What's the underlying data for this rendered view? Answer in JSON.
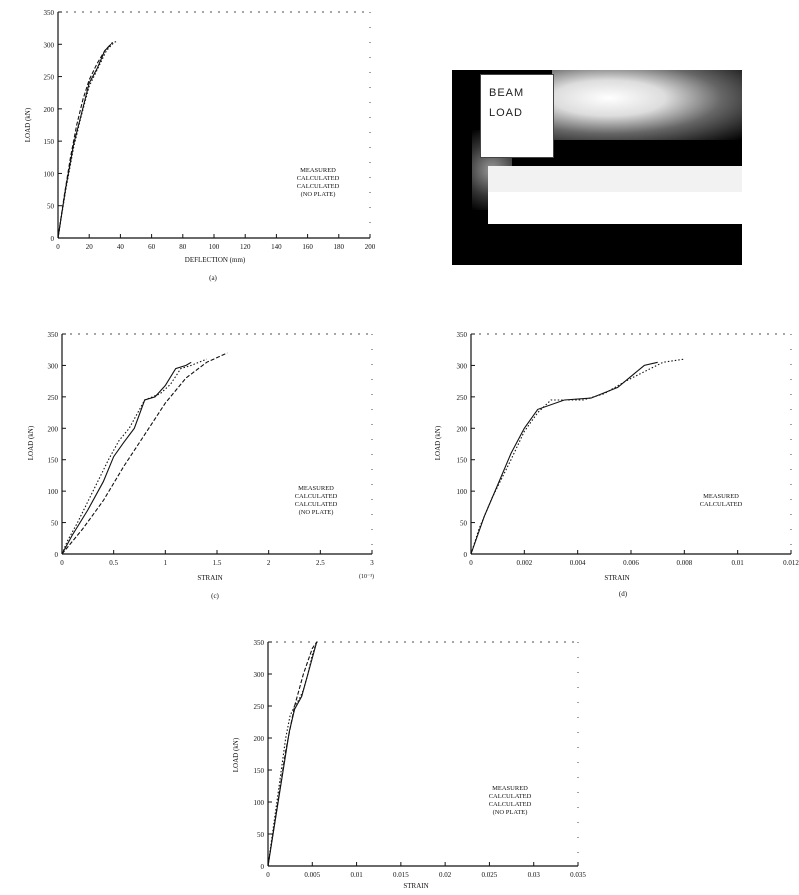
{
  "chart_data": [
    {
      "type": "line",
      "xlabel": "DEFLECTION (mm)",
      "ylabel": "LOAD (kN)",
      "sublabel": "(a)",
      "xticks": [
        "0",
        "20",
        "40",
        "60",
        "80",
        "100",
        "120",
        "140",
        "160",
        "180",
        "200"
      ],
      "yticks": [
        "0",
        "50",
        "100",
        "150",
        "200",
        "250",
        "300",
        "350"
      ],
      "xlim": [
        0,
        200
      ],
      "ylim": [
        0,
        350
      ],
      "legend": [
        "MEASURED",
        "CALCULATED",
        "CALCULATED",
        "(NO PLATE)"
      ],
      "legend_position": "right",
      "series": [
        {
          "style": "dotted",
          "x": [
            0,
            2,
            5,
            10,
            15,
            20,
            25,
            28,
            31,
            34,
            36,
            38
          ],
          "y": [
            0,
            30,
            75,
            140,
            190,
            235,
            260,
            275,
            290,
            298,
            303,
            305
          ]
        },
        {
          "style": "solid",
          "x": [
            0,
            5,
            10,
            15,
            20,
            25,
            30,
            34
          ],
          "y": [
            0,
            78,
            145,
            192,
            240,
            262,
            290,
            300
          ]
        },
        {
          "style": "dashed",
          "x": [
            0,
            4,
            8,
            12,
            16,
            20,
            25,
            30,
            35
          ],
          "y": [
            0,
            65,
            125,
            175,
            215,
            245,
            270,
            290,
            303
          ]
        }
      ]
    },
    {
      "type": "line",
      "xlabel": "STRAIN",
      "ylabel": "LOAD (kN)",
      "sublabel": "(c)",
      "xticks": [
        "0",
        "0.5",
        "1",
        "1.5",
        "2",
        "2.5",
        "3"
      ],
      "xmultiplier": "(10⁻³)",
      "yticks": [
        "0",
        "50",
        "100",
        "150",
        "200",
        "250",
        "300",
        "350"
      ],
      "xlim": [
        0,
        3
      ],
      "ylim": [
        0,
        350
      ],
      "legend": [
        "MEASURED",
        "CALCULATED",
        "CALCULATED",
        "(NO PLATE)"
      ],
      "legend_position": "right",
      "series": [
        {
          "style": "dotted",
          "x": [
            0,
            0.05,
            0.15,
            0.3,
            0.45,
            0.55,
            0.65,
            0.8,
            0.95,
            1.05,
            1.15,
            1.25,
            1.4
          ],
          "y": [
            0,
            20,
            50,
            100,
            150,
            180,
            200,
            245,
            255,
            270,
            295,
            300,
            310
          ]
        },
        {
          "style": "solid",
          "x": [
            0,
            0.1,
            0.25,
            0.4,
            0.5,
            0.6,
            0.7,
            0.8,
            0.9,
            1.0,
            1.1,
            1.2,
            1.25
          ],
          "y": [
            0,
            30,
            70,
            115,
            155,
            178,
            200,
            245,
            250,
            268,
            295,
            300,
            305
          ]
        },
        {
          "style": "dashed",
          "x": [
            0,
            0.2,
            0.4,
            0.6,
            0.8,
            1.0,
            1.2,
            1.4,
            1.6
          ],
          "y": [
            0,
            40,
            85,
            140,
            190,
            240,
            280,
            305,
            320
          ]
        }
      ]
    },
    {
      "type": "line",
      "xlabel": "STRAIN",
      "ylabel": "LOAD (kN)",
      "sublabel": "(d)",
      "xticks": [
        "0",
        "0.002",
        "0.004",
        "0.006",
        "0.008",
        "0.01",
        "0.012"
      ],
      "yticks": [
        "0",
        "50",
        "100",
        "150",
        "200",
        "250",
        "300",
        "350"
      ],
      "xlim": [
        0,
        0.012
      ],
      "ylim": [
        0,
        350
      ],
      "legend": [
        "MEASURED",
        "CALCULATED"
      ],
      "legend_position": "right",
      "series": [
        {
          "style": "dotted",
          "x": [
            0,
            0.0003,
            0.0008,
            0.0015,
            0.002,
            0.0025,
            0.003,
            0.0035,
            0.0042,
            0.005,
            0.0058,
            0.0065,
            0.0072,
            0.008
          ],
          "y": [
            0,
            40,
            90,
            150,
            195,
            225,
            245,
            245,
            245,
            255,
            275,
            290,
            305,
            310
          ]
        },
        {
          "style": "solid",
          "x": [
            0,
            0.0005,
            0.001,
            0.0015,
            0.002,
            0.0025,
            0.0035,
            0.0045,
            0.0055,
            0.0065,
            0.007
          ],
          "y": [
            0,
            60,
            110,
            160,
            200,
            230,
            245,
            248,
            265,
            300,
            305
          ]
        }
      ]
    },
    {
      "type": "line",
      "xlabel": "STRAIN",
      "ylabel": "LOAD (kN)",
      "sublabel": "",
      "xticks": [
        "0",
        "0.005",
        "0.01",
        "0.015",
        "0.02",
        "0.025",
        "0.03",
        "0.035"
      ],
      "yticks": [
        "0",
        "50",
        "100",
        "150",
        "200",
        "250",
        "300",
        "350"
      ],
      "xlim": [
        0,
        0.035
      ],
      "ylim": [
        0,
        350
      ],
      "legend": [
        "MEASURED",
        "CALCULATED",
        "CALCULATED",
        "(NO PLATE)"
      ],
      "legend_position": "right",
      "series": [
        {
          "style": "dotted",
          "x": [
            0,
            0.0005,
            0.001,
            0.0015,
            0.002,
            0.0025,
            0.003,
            0.0035,
            0.004,
            0.0045,
            0.005,
            0.0055
          ],
          "y": [
            0,
            50,
            100,
            150,
            200,
            235,
            250,
            260,
            275,
            300,
            330,
            350
          ]
        },
        {
          "style": "solid",
          "x": [
            0,
            0.0008,
            0.0016,
            0.0024,
            0.003,
            0.0038,
            0.0045,
            0.0055
          ],
          "y": [
            0,
            70,
            140,
            210,
            245,
            265,
            300,
            350
          ]
        },
        {
          "style": "dashed",
          "x": [
            0,
            0.001,
            0.002,
            0.003,
            0.004,
            0.005,
            0.0055
          ],
          "y": [
            0,
            90,
            180,
            250,
            300,
            340,
            350
          ]
        }
      ]
    }
  ],
  "photo": {
    "sign_lines": [
      "BEAM",
      "LOAD"
    ]
  }
}
